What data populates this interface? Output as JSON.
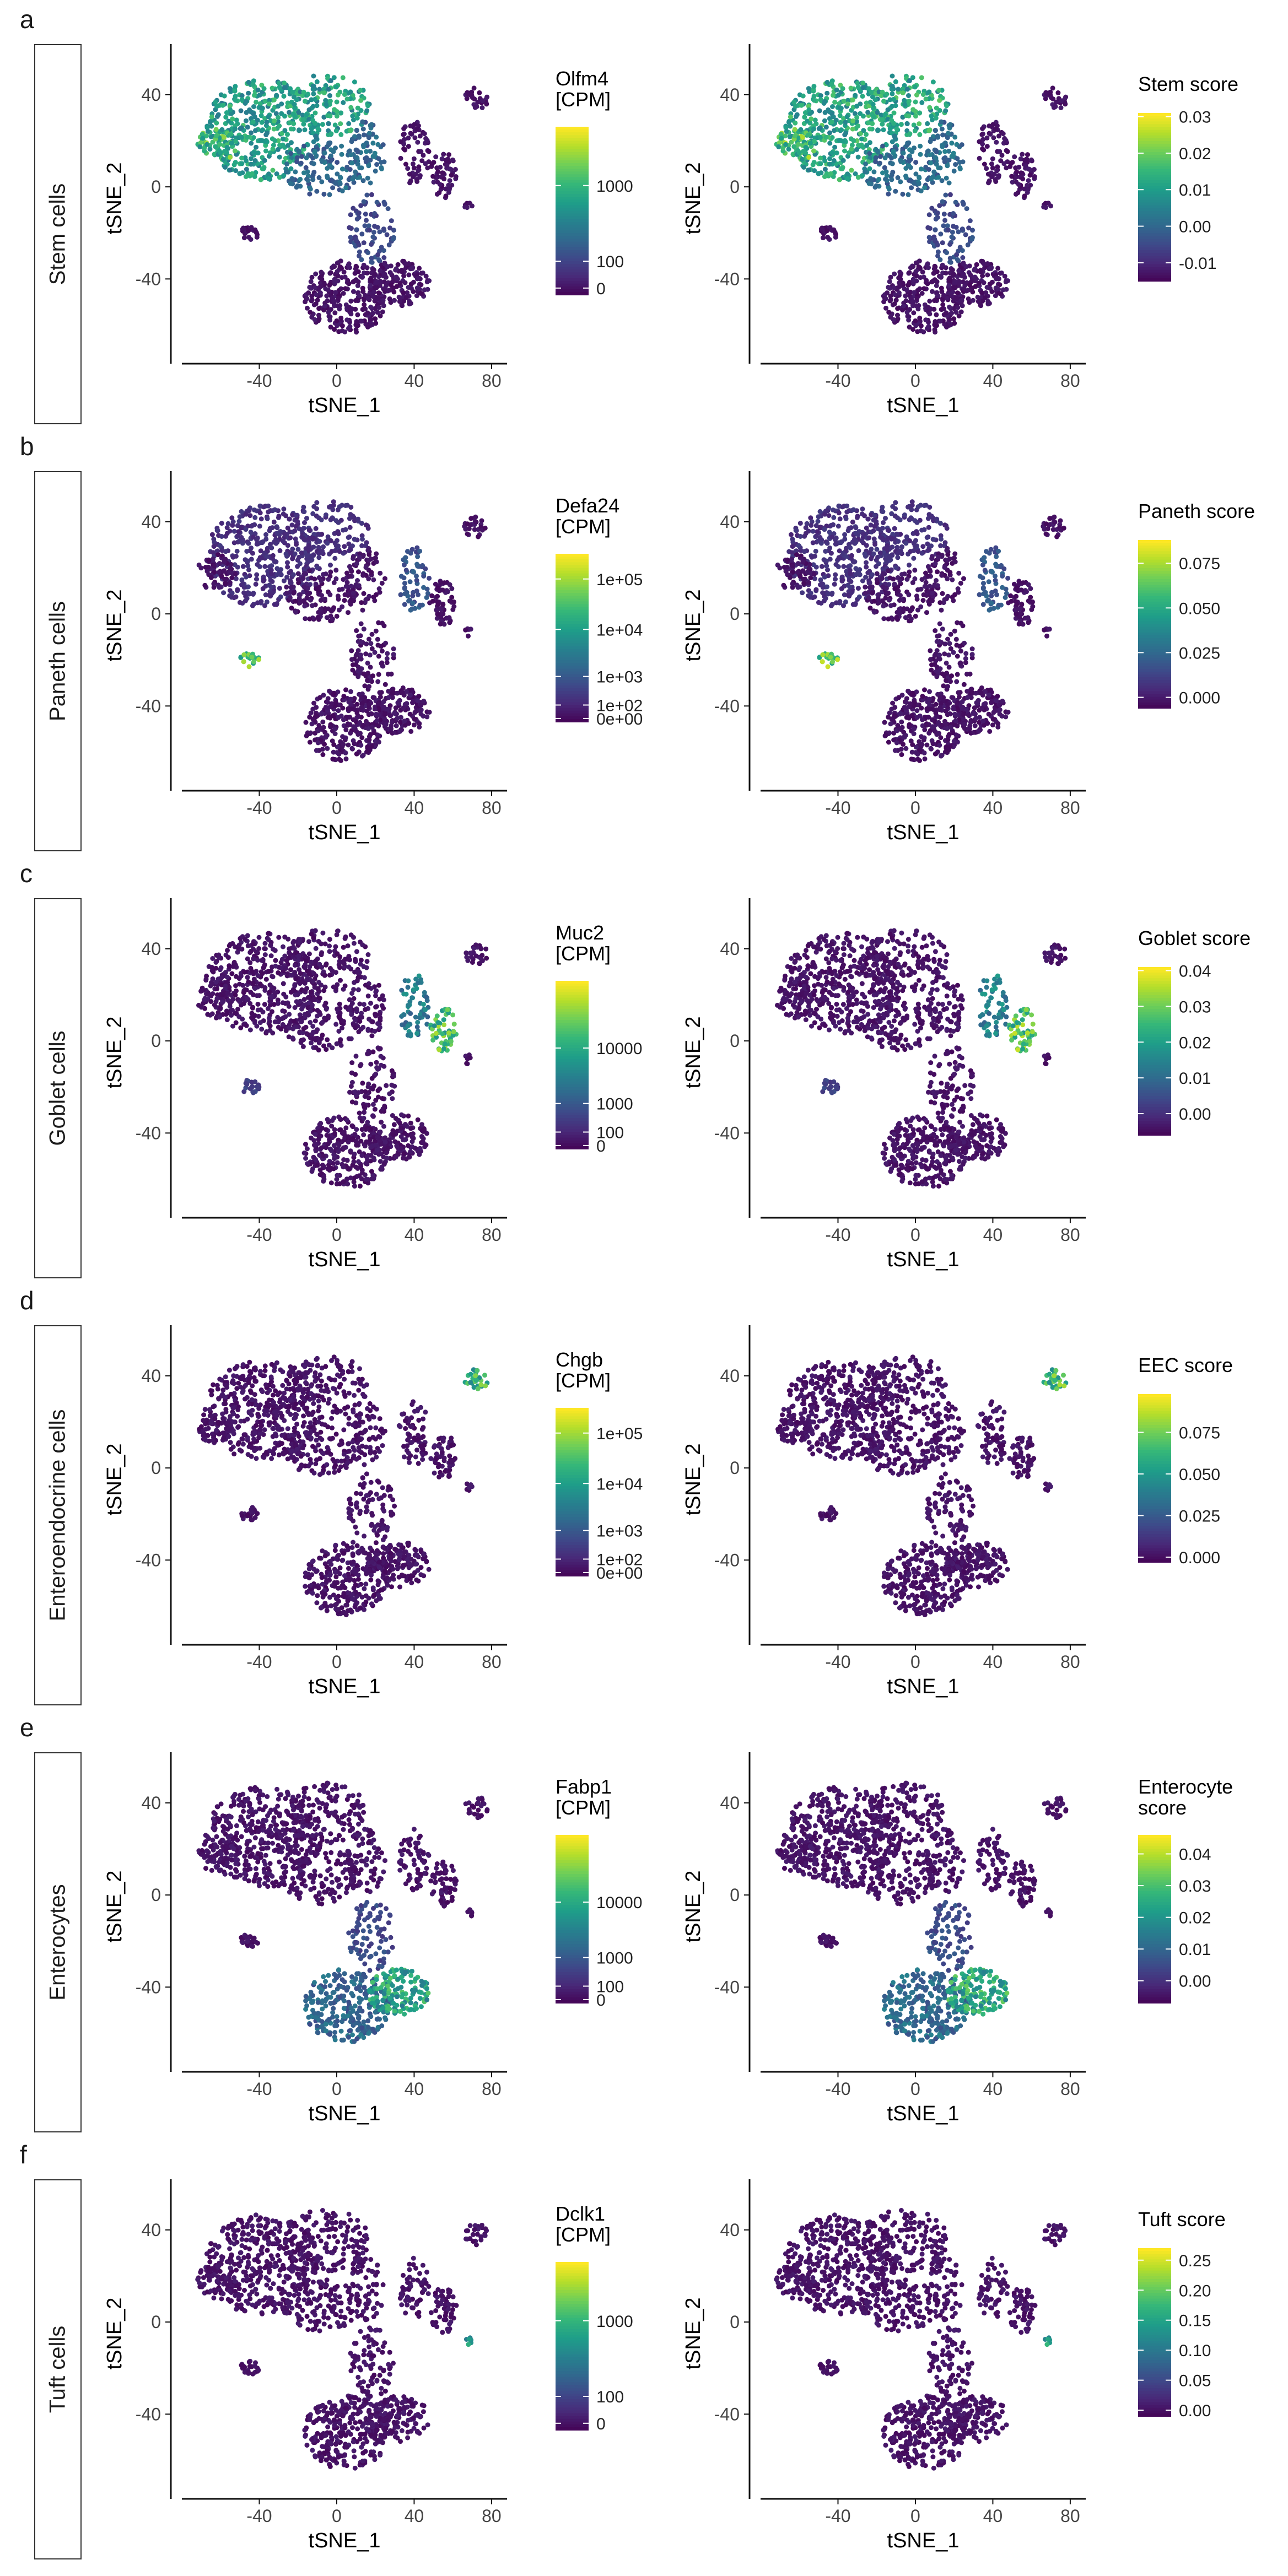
{
  "figure": {
    "panels": [
      {
        "letter": "a",
        "label": "Stem cells"
      },
      {
        "letter": "b",
        "label": "Paneth cells"
      },
      {
        "letter": "c",
        "label": "Goblet cells"
      },
      {
        "letter": "d",
        "label": "Enteroendocrine cells"
      },
      {
        "letter": "e",
        "label": "Enterocytes"
      },
      {
        "letter": "f",
        "label": "Tuft cells"
      }
    ]
  },
  "chart_data": [
    {
      "type": "scatter",
      "panel": "a",
      "side": "gene",
      "title": "",
      "xlabel": "tSNE_1",
      "ylabel": "tSNE_2",
      "xlim": [
        -80,
        88
      ],
      "ylim": [
        -72,
        62
      ],
      "x_ticks": [
        "-40",
        "0",
        "40",
        "80"
      ],
      "y_ticks": [
        "40",
        "0",
        "-40"
      ],
      "colorbar": {
        "title": [
          "Olfm4",
          "[CPM]"
        ],
        "ticks": [
          "1000",
          "100",
          "0"
        ],
        "scale": "log"
      },
      "expression_pattern": "high in upper-left cluster (stem), low elsewhere"
    },
    {
      "type": "scatter",
      "panel": "a",
      "side": "score",
      "title": "",
      "xlabel": "tSNE_1",
      "ylabel": "tSNE_2",
      "xlim": [
        -80,
        88
      ],
      "ylim": [
        -72,
        62
      ],
      "x_ticks": [
        "-40",
        "0",
        "40",
        "80"
      ],
      "y_ticks": [
        "40",
        "0",
        "-40"
      ],
      "colorbar": {
        "title": [
          "Stem score"
        ],
        "ticks": [
          "0.03",
          "0.02",
          "0.01",
          "0.00",
          "-0.01"
        ],
        "range": [
          -0.015,
          0.031
        ]
      },
      "expression_pattern": "high in upper-left cluster (stem)"
    },
    {
      "type": "scatter",
      "panel": "b",
      "side": "gene",
      "title": "",
      "xlabel": "tSNE_1",
      "ylabel": "tSNE_2",
      "xlim": [
        -80,
        88
      ],
      "ylim": [
        -72,
        62
      ],
      "x_ticks": [
        "-40",
        "0",
        "40",
        "80"
      ],
      "y_ticks": [
        "40",
        "0",
        "-40"
      ],
      "colorbar": {
        "title": [
          "Defa24",
          "[CPM]"
        ],
        "ticks": [
          "1e+05",
          "1e+04",
          "1e+03",
          "1e+02",
          "0e+00"
        ],
        "scale": "log"
      },
      "expression_pattern": "high in small island near (-45, -20)"
    },
    {
      "type": "scatter",
      "panel": "b",
      "side": "score",
      "title": "",
      "xlabel": "tSNE_1",
      "ylabel": "tSNE_2",
      "xlim": [
        -80,
        88
      ],
      "ylim": [
        -72,
        62
      ],
      "x_ticks": [
        "-40",
        "0",
        "40",
        "80"
      ],
      "y_ticks": [
        "40",
        "0",
        "-40"
      ],
      "colorbar": {
        "title": [
          "Paneth score"
        ],
        "ticks": [
          "0.075",
          "0.050",
          "0.025",
          "0.000"
        ],
        "range": [
          -0.006,
          0.088
        ]
      },
      "expression_pattern": "high in small island near (-45, -20)"
    },
    {
      "type": "scatter",
      "panel": "c",
      "side": "gene",
      "title": "",
      "xlabel": "tSNE_1",
      "ylabel": "tSNE_2",
      "xlim": [
        -80,
        88
      ],
      "ylim": [
        -72,
        62
      ],
      "x_ticks": [
        "-40",
        "0",
        "40",
        "80"
      ],
      "y_ticks": [
        "40",
        "0",
        "-40"
      ],
      "colorbar": {
        "title": [
          "Muc2",
          "[CPM]"
        ],
        "ticks": [
          "10000",
          "1000",
          "100",
          "0"
        ],
        "scale": "log"
      },
      "expression_pattern": "high in right cluster near (55, 5)"
    },
    {
      "type": "scatter",
      "panel": "c",
      "side": "score",
      "title": "",
      "xlabel": "tSNE_1",
      "ylabel": "tSNE_2",
      "xlim": [
        -80,
        88
      ],
      "ylim": [
        -72,
        62
      ],
      "x_ticks": [
        "-40",
        "0",
        "40",
        "80"
      ],
      "y_ticks": [
        "40",
        "0",
        "-40"
      ],
      "colorbar": {
        "title": [
          "Goblet score"
        ],
        "ticks": [
          "0.04",
          "0.03",
          "0.02",
          "0.01",
          "0.00"
        ],
        "range": [
          -0.006,
          0.041
        ]
      },
      "expression_pattern": "high in right cluster near (55, 5)"
    },
    {
      "type": "scatter",
      "panel": "d",
      "side": "gene",
      "title": "",
      "xlabel": "tSNE_1",
      "ylabel": "tSNE_2",
      "xlim": [
        -80,
        88
      ],
      "ylim": [
        -72,
        62
      ],
      "x_ticks": [
        "-40",
        "0",
        "40",
        "80"
      ],
      "y_ticks": [
        "40",
        "0",
        "-40"
      ],
      "colorbar": {
        "title": [
          "Chgb",
          "[CPM]"
        ],
        "ticks": [
          "1e+05",
          "1e+04",
          "1e+03",
          "1e+02",
          "0e+00"
        ],
        "scale": "log"
      },
      "expression_pattern": "high in top-right island near (72, 40)"
    },
    {
      "type": "scatter",
      "panel": "d",
      "side": "score",
      "title": "",
      "xlabel": "tSNE_1",
      "ylabel": "tSNE_2",
      "xlim": [
        -80,
        88
      ],
      "ylim": [
        -72,
        62
      ],
      "x_ticks": [
        "-40",
        "0",
        "40",
        "80"
      ],
      "y_ticks": [
        "40",
        "0",
        "-40"
      ],
      "colorbar": {
        "title": [
          "EEC score"
        ],
        "ticks": [
          "0.075",
          "0.050",
          "0.025",
          "0.000"
        ],
        "range": [
          -0.003,
          0.098
        ]
      },
      "expression_pattern": "high in top-right island near (72, 40)"
    },
    {
      "type": "scatter",
      "panel": "e",
      "side": "gene",
      "title": "",
      "xlabel": "tSNE_1",
      "ylabel": "tSNE_2",
      "xlim": [
        -80,
        88
      ],
      "ylim": [
        -72,
        62
      ],
      "x_ticks": [
        "-40",
        "0",
        "40",
        "80"
      ],
      "y_ticks": [
        "40",
        "0",
        "-40"
      ],
      "colorbar": {
        "title": [
          "Fabp1",
          "[CPM]"
        ],
        "ticks": [
          "10000",
          "1000",
          "100",
          "0"
        ],
        "scale": "log"
      },
      "expression_pattern": "high in lower cluster, strongest near (40, -40)"
    },
    {
      "type": "scatter",
      "panel": "e",
      "side": "score",
      "title": "",
      "xlabel": "tSNE_1",
      "ylabel": "tSNE_2",
      "xlim": [
        -80,
        88
      ],
      "ylim": [
        -72,
        62
      ],
      "x_ticks": [
        "-40",
        "0",
        "40",
        "80"
      ],
      "y_ticks": [
        "40",
        "0",
        "-40"
      ],
      "colorbar": {
        "title": [
          "Enterocyte",
          "score"
        ],
        "ticks": [
          "0.04",
          "0.03",
          "0.02",
          "0.01",
          "0.00"
        ],
        "range": [
          -0.007,
          0.046
        ]
      },
      "expression_pattern": "high in lower cluster, strongest near (40, -40)"
    },
    {
      "type": "scatter",
      "panel": "f",
      "side": "gene",
      "title": "",
      "xlabel": "tSNE_1",
      "ylabel": "tSNE_2",
      "xlim": [
        -80,
        88
      ],
      "ylim": [
        -72,
        62
      ],
      "x_ticks": [
        "-40",
        "0",
        "40",
        "80"
      ],
      "y_ticks": [
        "40",
        "0",
        "-40"
      ],
      "colorbar": {
        "title": [
          "Dclk1",
          "[CPM]"
        ],
        "ticks": [
          "1000",
          "100",
          "0"
        ],
        "scale": "log"
      },
      "expression_pattern": "high only in tiny island near (68, -8)"
    },
    {
      "type": "scatter",
      "panel": "f",
      "side": "score",
      "title": "",
      "xlabel": "tSNE_1",
      "ylabel": "tSNE_2",
      "xlim": [
        -80,
        88
      ],
      "ylim": [
        -72,
        62
      ],
      "x_ticks": [
        "-40",
        "0",
        "40",
        "80"
      ],
      "y_ticks": [
        "40",
        "0",
        "-40"
      ],
      "colorbar": {
        "title": [
          "Tuft score"
        ],
        "ticks": [
          "0.25",
          "0.20",
          "0.15",
          "0.10",
          "0.05",
          "0.00"
        ],
        "range": [
          -0.01,
          0.27
        ]
      },
      "expression_pattern": "high only in tiny island near (68, -8)"
    }
  ],
  "colors": {
    "viridis": [
      "#440154",
      "#482878",
      "#3e4989",
      "#31688e",
      "#26828e",
      "#1f9e89",
      "#35b779",
      "#6ece58",
      "#b5de2b",
      "#fde725"
    ],
    "axis": "#111111",
    "strip_border": "#333333"
  }
}
